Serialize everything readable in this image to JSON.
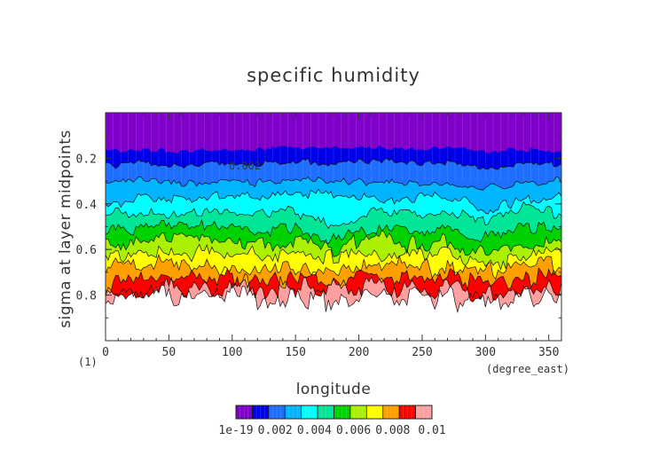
{
  "chart_data": {
    "type": "area",
    "title": "specific humidity",
    "xlabel": "longitude",
    "ylabel": "sigma at layer midpoints",
    "x_unit": "(degree_east)",
    "y_unit": "(1)",
    "xlim": [
      0,
      360
    ],
    "ylim": [
      1.0,
      0.0
    ],
    "x_ticks": [
      "0",
      "50",
      "100",
      "150",
      "200",
      "250",
      "300",
      "350"
    ],
    "y_ticks": [
      "0.2",
      "0.4",
      "0.6",
      "0.8"
    ],
    "colorbar_labels": [
      "1e-19",
      "0.002",
      "0.004",
      "0.006",
      "0.008",
      "0.01"
    ],
    "level_colors": [
      "#7f00c8",
      "#0000e6",
      "#1e6eff",
      "#00b4ff",
      "#00ffff",
      "#00e696",
      "#00d200",
      "#aaf000",
      "#ffff00",
      "#ffa000",
      "#ff0000",
      "#ffa0a0"
    ],
    "contour_label": "0.002",
    "x": [
      0,
      30,
      60,
      90,
      120,
      150,
      180,
      210,
      240,
      270,
      300,
      330,
      360
    ],
    "isolines": [
      {
        "level": "1e-19",
        "sigma": [
          0.17,
          0.16,
          0.17,
          0.16,
          0.16,
          0.15,
          0.16,
          0.15,
          0.16,
          0.16,
          0.17,
          0.16,
          0.17
        ]
      },
      {
        "level": "0.001",
        "sigma": [
          0.23,
          0.22,
          0.24,
          0.22,
          0.22,
          0.21,
          0.22,
          0.21,
          0.22,
          0.22,
          0.24,
          0.22,
          0.23
        ]
      },
      {
        "level": "0.002",
        "sigma": [
          0.3,
          0.3,
          0.31,
          0.3,
          0.31,
          0.29,
          0.3,
          0.3,
          0.31,
          0.3,
          0.33,
          0.31,
          0.3
        ]
      },
      {
        "level": "0.003",
        "sigma": [
          0.4,
          0.37,
          0.38,
          0.36,
          0.37,
          0.35,
          0.36,
          0.37,
          0.38,
          0.36,
          0.43,
          0.38,
          0.37
        ]
      },
      {
        "level": "0.004",
        "sigma": [
          0.45,
          0.43,
          0.44,
          0.42,
          0.45,
          0.43,
          0.5,
          0.43,
          0.44,
          0.43,
          0.47,
          0.42,
          0.44
        ]
      },
      {
        "level": "0.005",
        "sigma": [
          0.52,
          0.5,
          0.5,
          0.5,
          0.52,
          0.51,
          0.56,
          0.5,
          0.52,
          0.51,
          0.55,
          0.5,
          0.5
        ]
      },
      {
        "level": "0.006",
        "sigma": [
          0.58,
          0.56,
          0.56,
          0.56,
          0.58,
          0.57,
          0.6,
          0.55,
          0.58,
          0.57,
          0.62,
          0.57,
          0.56
        ]
      },
      {
        "level": "0.007",
        "sigma": [
          0.63,
          0.61,
          0.62,
          0.62,
          0.63,
          0.62,
          0.64,
          0.61,
          0.63,
          0.62,
          0.67,
          0.63,
          0.62
        ]
      },
      {
        "level": "0.008",
        "sigma": [
          0.68,
          0.67,
          0.67,
          0.67,
          0.68,
          0.68,
          0.69,
          0.66,
          0.68,
          0.68,
          0.7,
          0.68,
          0.67
        ]
      },
      {
        "level": "0.009",
        "sigma": [
          0.74,
          0.72,
          0.72,
          0.71,
          0.73,
          0.73,
          0.74,
          0.71,
          0.73,
          0.73,
          0.75,
          0.73,
          0.72
        ]
      },
      {
        "level": "0.010",
        "sigma": [
          0.78,
          0.76,
          0.76,
          0.75,
          0.77,
          0.77,
          0.78,
          0.75,
          0.77,
          0.77,
          0.79,
          0.77,
          0.76
        ]
      },
      {
        "level": "0.011",
        "sigma": [
          0.82,
          0.8,
          0.8,
          0.79,
          0.81,
          0.81,
          0.82,
          0.79,
          0.81,
          0.81,
          0.83,
          0.81,
          0.8
        ]
      }
    ]
  }
}
